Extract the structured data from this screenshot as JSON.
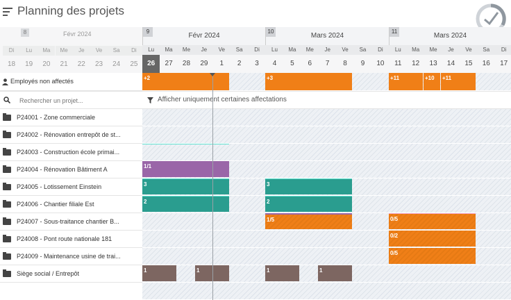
{
  "app": {
    "title": "Planning des projets"
  },
  "left": {
    "unassigned_label": "Employés non affectés",
    "search_placeholder": "Rechercher un projet...",
    "projects": [
      "P24001 - Zone commerciale",
      "P24002 - Rénovation entrepôt de st...",
      "P24003 - Construction école primai...",
      "P24004 - Rénovation Bâtiment A",
      "P24005 - Lotissement Einstein",
      "P24006 - Chantier filiale Est",
      "P24007 - Sous-traitance chantier B...",
      "P24008 - Pont route nationale 181",
      "P24009 - Maintenance usine de trai...",
      "Siège social / Entrepôt"
    ]
  },
  "calendar": {
    "weeks": [
      {
        "num": "8",
        "label": "Févr  2024"
      },
      {
        "num": "9",
        "label": "Févr  2024"
      },
      {
        "num": "10",
        "label": "Mars  2024"
      },
      {
        "num": "11",
        "label": "Mars  2024"
      }
    ],
    "day_names": [
      "Di",
      "Lu",
      "Ma",
      "Me",
      "Je",
      "Ve",
      "Sa",
      "Di",
      "Lu",
      "Ma",
      "Me",
      "Je",
      "Ve",
      "Sa",
      "Di",
      "Lu",
      "Ma",
      "Me",
      "Je",
      "Ve",
      "Sa",
      "Di",
      "Lu",
      "Ma",
      "Me",
      "Je",
      "Ve",
      "Sa",
      "Di"
    ],
    "dates": [
      "18",
      "19",
      "20",
      "21",
      "22",
      "23",
      "24",
      "25",
      "26",
      "27",
      "28",
      "29",
      "1",
      "2",
      "3",
      "4",
      "5",
      "6",
      "7",
      "8",
      "9",
      "10",
      "11",
      "12",
      "13",
      "14",
      "15",
      "16",
      "17"
    ],
    "today_index": 8,
    "filter_label": "Afficher uniquement certaines affectations",
    "unassigned_counts": [
      "+2",
      "+3",
      "+11",
      "+10",
      "+11"
    ]
  },
  "bars": {
    "p4": "1/1",
    "p5a": "3",
    "p5b": "3",
    "p6a": "2",
    "p6b": "2",
    "p7a": "1/5",
    "p7b": "0/5",
    "p8": "0/2",
    "p9": "0/5",
    "hq1": "1",
    "hq2": "1",
    "hq3": "1",
    "hq4": "1"
  },
  "colors": {
    "orange": "#f07f17",
    "teal": "#2a9d8f",
    "purple": "#9a66a8",
    "brown": "#7d6661"
  }
}
